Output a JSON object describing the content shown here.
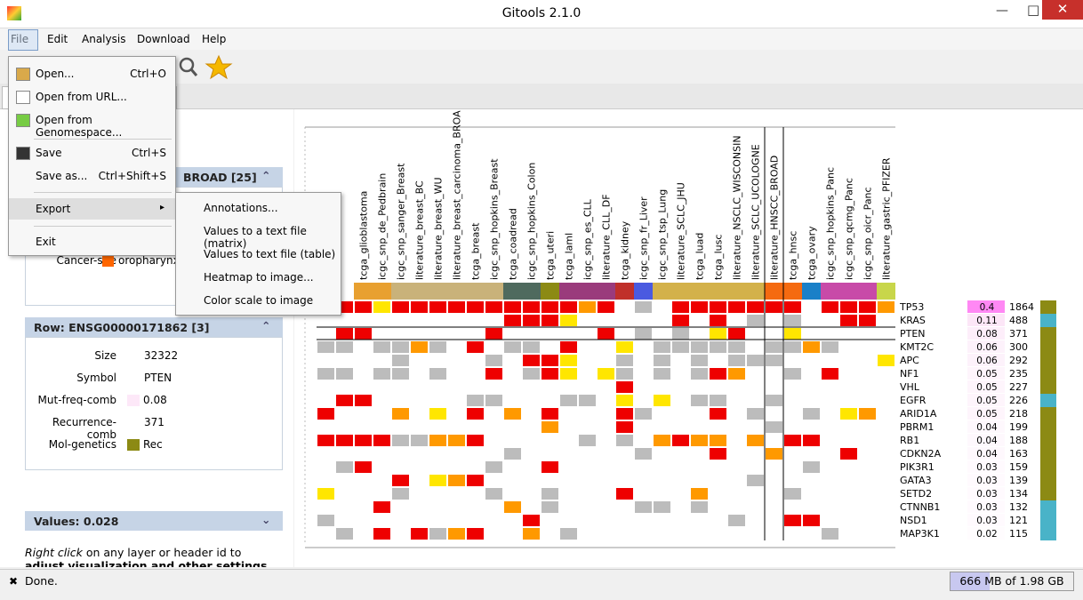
{
  "window": {
    "title": "Gitools 2.1.0"
  },
  "menu": [
    "File",
    "Edit",
    "Analysis",
    "Download",
    "Help"
  ],
  "file_menu": [
    {
      "label": "Open...",
      "shortcut": "Ctrl+O"
    },
    {
      "label": "Open from URL..."
    },
    {
      "label": "Open from Genomespace..."
    },
    {
      "label": "Save",
      "shortcut": "Ctrl+S"
    },
    {
      "label": "Save as...",
      "shortcut": "Ctrl+Shift+S"
    },
    {
      "label": "Export"
    },
    {
      "label": "Exit"
    }
  ],
  "export_menu": [
    "Annotations...",
    "Values to a text file (matrix)",
    "Values to text file (table)",
    "Heatmap to image...",
    "Color scale to image"
  ],
  "left_panel": {
    "column_header": "BROAD [25]",
    "cancer_site_label": "Cancer-site",
    "cancer_site_value": "oropharynx",
    "row_header": "Row: ENSG00000171862 [3]",
    "row_props": [
      {
        "label": "Size",
        "value": "32322"
      },
      {
        "label": "Symbol",
        "value": "PTEN"
      },
      {
        "label": "Mut-freq-comb",
        "value": "0.08"
      },
      {
        "label": "Recurrence-comb",
        "value": "371"
      },
      {
        "label": "Mol-genetics",
        "value": "Rec"
      }
    ],
    "values_header": "Values: 0.028",
    "hint_em": "Right click",
    "hint_rest": "on any layer or header id to",
    "hint_bold": "adjust visualization and other settings"
  },
  "heatmap": {
    "columns": [
      "tcga_glioblastoma",
      "icgc_snp_de_Pedbrain",
      "icgc_snp_sanger_Breast",
      "literature_breast_BC",
      "literature_breast_WU",
      "literature_breast_carcinoma_BROA",
      "tcga_breast",
      "icgc_snp_hopkins_Breast",
      "tcga_coadread",
      "icgc_snp_hopkins_Colon",
      "tcga_uteri",
      "tcga_laml",
      "icgc_snp_es_CLL",
      "literature_CLL_DF",
      "tcga_kidney",
      "icgc_snp_fr_Liver",
      "icgc_snp_tsp_Lung",
      "literature_SCLC_JHU",
      "tcga_luad",
      "tcga_lusc",
      "literature_NSCLC_WISCONSIN",
      "literature_SCLC_UCOLOGNE",
      "literature_HNSCC_BROAD",
      "tcga_hnsc",
      "tcga_ovary",
      "icgc_snp_hopkins_Panc",
      "icgc_snp_qcmg_Panc",
      "icgc_snp_oicr_Panc",
      "literature_gastric_PFIZER"
    ],
    "rows": [
      {
        "gene": "TP53",
        "freq": "0.4",
        "count": "1864"
      },
      {
        "gene": "KRAS",
        "freq": "0.11",
        "count": "488"
      },
      {
        "gene": "PTEN",
        "freq": "0.08",
        "count": "371"
      },
      {
        "gene": "KMT2C",
        "freq": "0.06",
        "count": "300"
      },
      {
        "gene": "APC",
        "freq": "0.06",
        "count": "292"
      },
      {
        "gene": "NF1",
        "freq": "0.05",
        "count": "235"
      },
      {
        "gene": "VHL",
        "freq": "0.05",
        "count": "227"
      },
      {
        "gene": "EGFR",
        "freq": "0.05",
        "count": "226"
      },
      {
        "gene": "ARID1A",
        "freq": "0.05",
        "count": "218"
      },
      {
        "gene": "PBRM1",
        "freq": "0.04",
        "count": "199"
      },
      {
        "gene": "RB1",
        "freq": "0.04",
        "count": "188"
      },
      {
        "gene": "CDKN2A",
        "freq": "0.04",
        "count": "163"
      },
      {
        "gene": "PIK3R1",
        "freq": "0.03",
        "count": "159"
      },
      {
        "gene": "GATA3",
        "freq": "0.03",
        "count": "139"
      },
      {
        "gene": "SETD2",
        "freq": "0.03",
        "count": "134"
      },
      {
        "gene": "CTNNB1",
        "freq": "0.03",
        "count": "132"
      },
      {
        "gene": "NSD1",
        "freq": "0.03",
        "count": "121"
      },
      {
        "gene": "MAP3K1",
        "freq": "0.02",
        "count": "115"
      }
    ]
  },
  "status": {
    "text": "Done.",
    "memory": "666 MB of 1.98 GB"
  }
}
